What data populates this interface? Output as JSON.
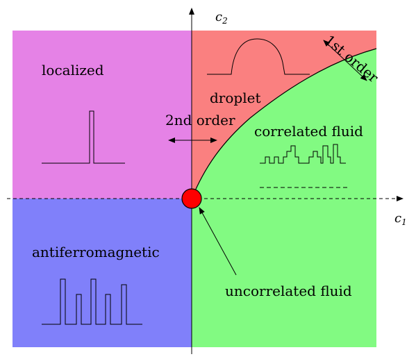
{
  "axes": {
    "x_label": "c",
    "x_sub": "1",
    "y_label": "c",
    "y_sub": "2"
  },
  "regions": {
    "localized": {
      "label": "localized",
      "color": "#e582e6"
    },
    "droplet": {
      "label": "droplet",
      "color": "#fa8080"
    },
    "correlated_fluid": {
      "label": "correlated fluid",
      "color": "#82fa82"
    },
    "antiferromagnetic": {
      "label": "antiferromagnetic",
      "color": "#8080fa"
    }
  },
  "annotations": {
    "second_order": "2nd order",
    "first_order": "1st order",
    "uncorrelated_fluid": "uncorrelated fluid"
  },
  "critical_point_color": "#ff0000"
}
